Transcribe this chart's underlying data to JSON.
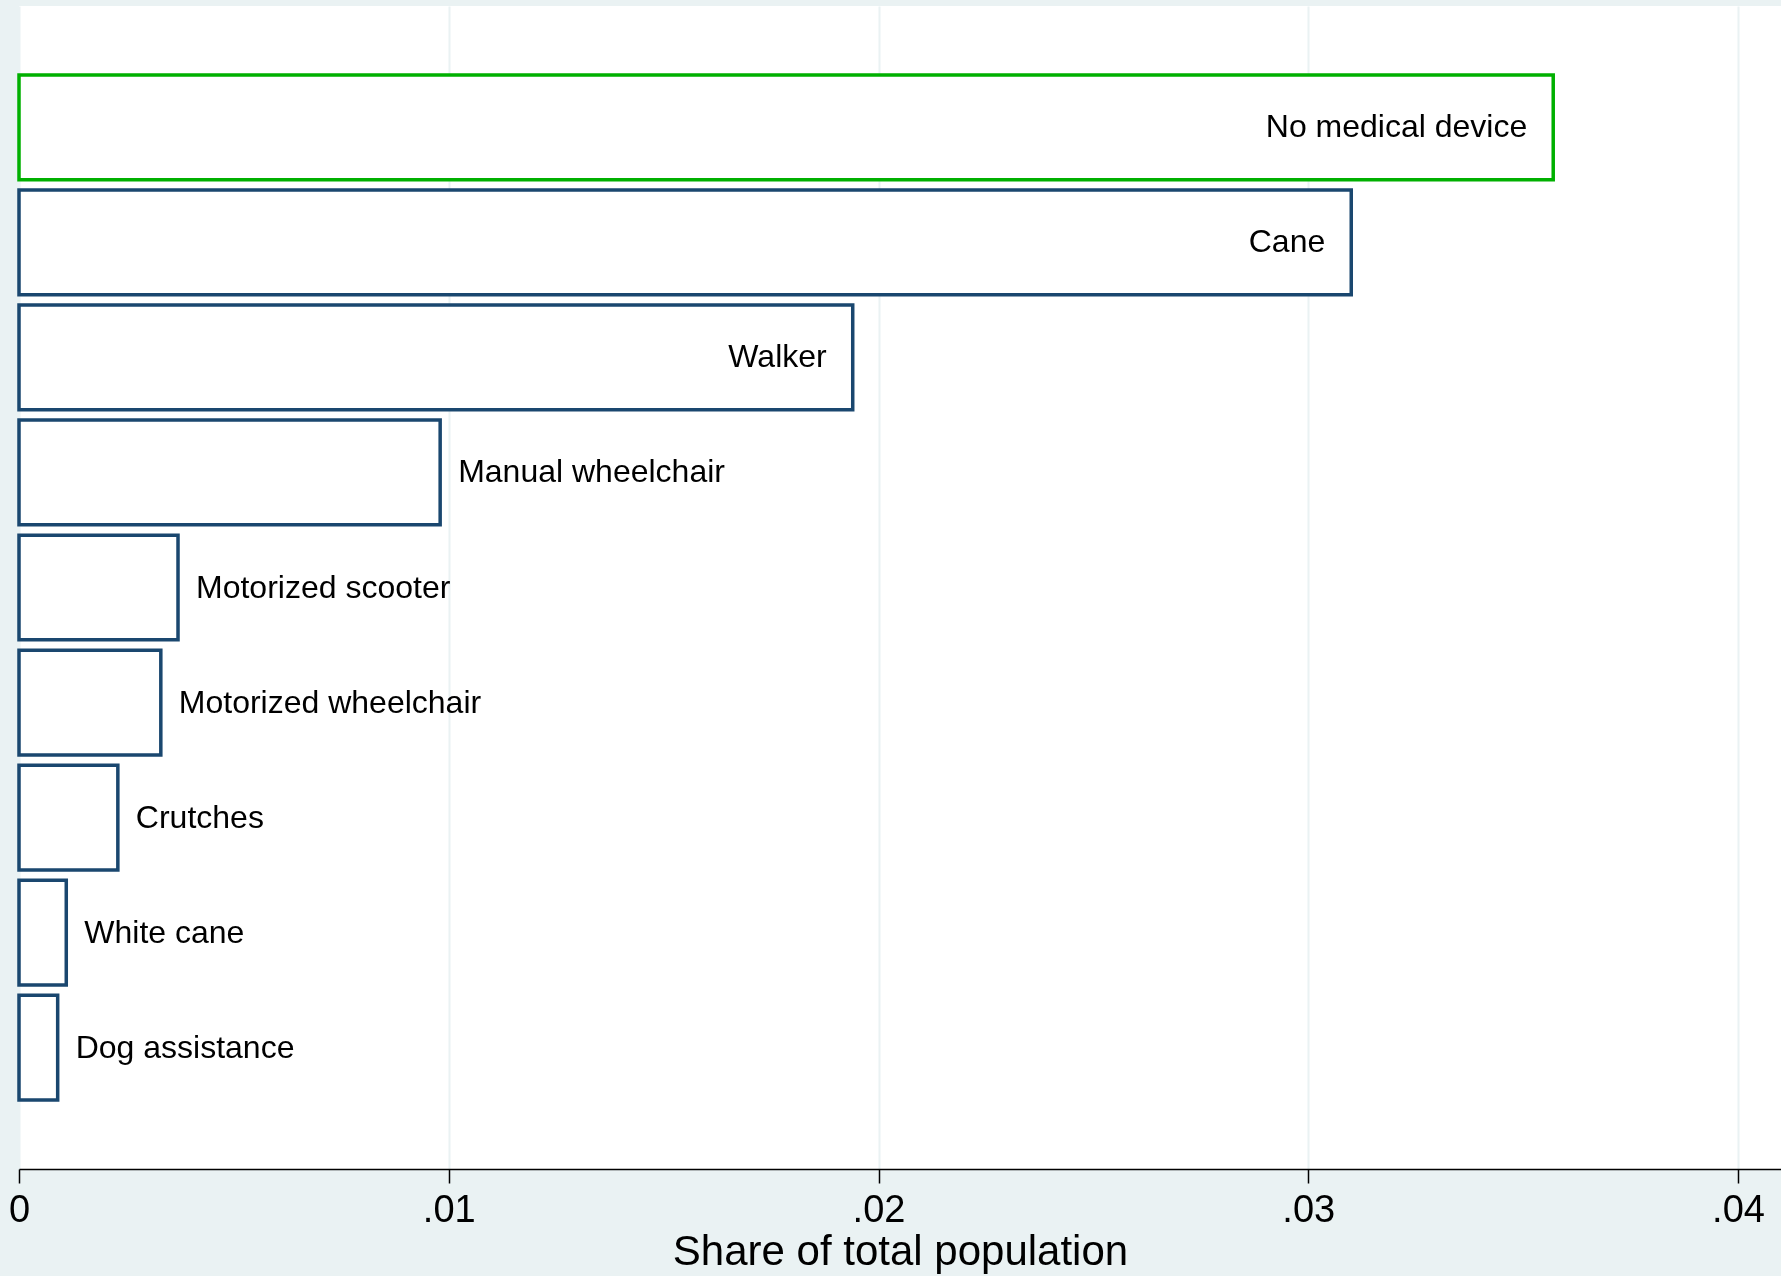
{
  "chart_data": {
    "type": "bar",
    "orientation": "horizontal",
    "xlabel": "Share of total population",
    "categories": [
      "No medical device",
      "Cane",
      "Walker",
      "Manual wheelchair",
      "Motorized scooter",
      "Motorized wheelchair",
      "Crutches",
      "White cane",
      "Dog assistance"
    ],
    "values": [
      0.0357,
      0.031,
      0.0194,
      0.0098,
      0.0037,
      0.0033,
      0.0023,
      0.0011,
      0.0009
    ],
    "colors": [
      "#00b000",
      "#1a476f",
      "#1a476f",
      "#1a476f",
      "#1a476f",
      "#1a476f",
      "#1a476f",
      "#1a476f",
      "#1a476f"
    ],
    "xlim": [
      0,
      0.041
    ],
    "xticks": [
      0,
      {
        "value": 0.01,
        "label": ".01"
      },
      {
        "value": 0.02,
        "label": ".02"
      },
      {
        "value": 0.03,
        "label": ".03"
      },
      {
        "value": 0.04,
        "label": ".04"
      }
    ],
    "grid": "x",
    "tick_labels": "x"
  }
}
